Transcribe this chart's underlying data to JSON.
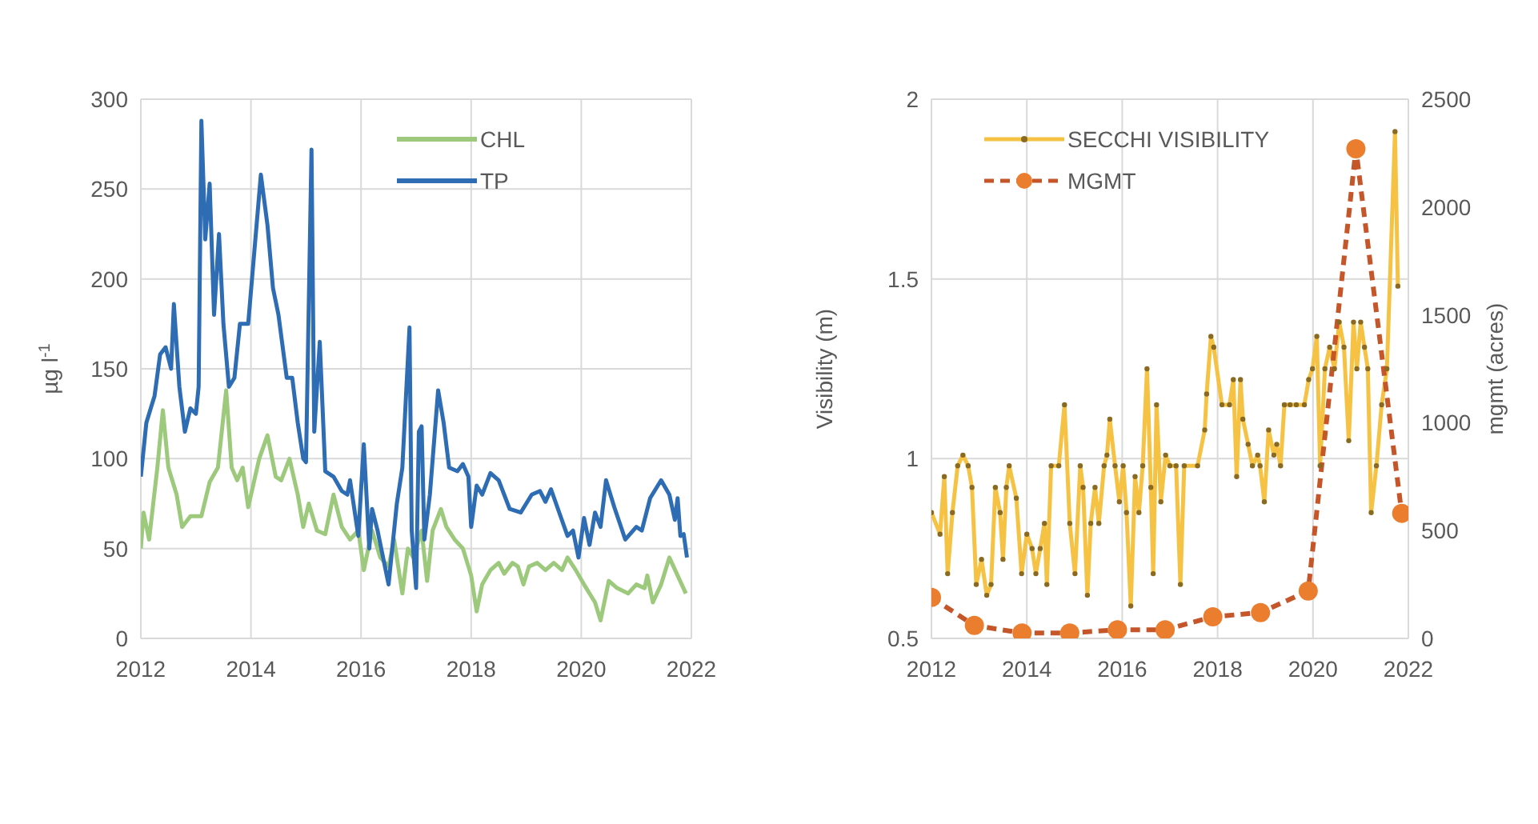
{
  "chart_data": [
    {
      "type": "line",
      "ylabel": "µg l$^{-1}$",
      "xlim": [
        2012,
        2022
      ],
      "xticks": [
        2012,
        2014,
        2016,
        2018,
        2020,
        2022
      ],
      "ylim": [
        0,
        300
      ],
      "yticks": [
        0,
        50,
        100,
        150,
        200,
        250,
        300
      ],
      "grid": true,
      "legend": "top right",
      "series": [
        {
          "name": "CHL",
          "color": "#9cc97c",
          "x": [
            2012.0,
            2012.05,
            2012.15,
            2012.3,
            2012.4,
            2012.5,
            2012.65,
            2012.75,
            2012.9,
            2013.1,
            2013.25,
            2013.4,
            2013.55,
            2013.65,
            2013.75,
            2013.85,
            2013.95,
            2014.15,
            2014.3,
            2014.45,
            2014.55,
            2014.7,
            2014.85,
            2014.95,
            2015.05,
            2015.2,
            2015.35,
            2015.5,
            2015.65,
            2015.8,
            2015.95,
            2016.05,
            2016.2,
            2016.35,
            2016.5,
            2016.6,
            2016.75,
            2016.85,
            2016.95,
            2017.1,
            2017.2,
            2017.3,
            2017.45,
            2017.55,
            2017.7,
            2017.85,
            2017.95,
            2018.0,
            2018.1,
            2018.2,
            2018.35,
            2018.5,
            2018.6,
            2018.75,
            2018.85,
            2018.95,
            2019.05,
            2019.2,
            2019.35,
            2019.5,
            2019.65,
            2019.75,
            2019.9,
            2020.05,
            2020.25,
            2020.35,
            2020.5,
            2020.65,
            2020.85,
            2021.0,
            2021.15,
            2021.2,
            2021.3,
            2021.45,
            2021.6,
            2021.75,
            2021.9
          ],
          "values": [
            50,
            70,
            55,
            95,
            127,
            95,
            80,
            62,
            68,
            68,
            87,
            95,
            138,
            95,
            88,
            95,
            73,
            100,
            113,
            90,
            88,
            100,
            80,
            62,
            75,
            60,
            58,
            80,
            62,
            55,
            60,
            38,
            60,
            45,
            40,
            55,
            25,
            50,
            45,
            60,
            32,
            60,
            72,
            62,
            55,
            50,
            40,
            35,
            15,
            30,
            38,
            42,
            36,
            42,
            40,
            30,
            40,
            42,
            38,
            42,
            38,
            45,
            38,
            30,
            20,
            10,
            32,
            28,
            25,
            30,
            28,
            35,
            20,
            30,
            45,
            35,
            25
          ]
        },
        {
          "name": "TP",
          "color": "#2e6db4",
          "x": [
            2012.0,
            2012.1,
            2012.25,
            2012.35,
            2012.45,
            2012.55,
            2012.6,
            2012.7,
            2012.8,
            2012.9,
            2013.0,
            2013.05,
            2013.1,
            2013.17,
            2013.25,
            2013.33,
            2013.42,
            2013.5,
            2013.6,
            2013.7,
            2013.8,
            2013.95,
            2014.18,
            2014.3,
            2014.4,
            2014.5,
            2014.65,
            2014.75,
            2014.85,
            2014.95,
            2015.0,
            2015.1,
            2015.15,
            2015.25,
            2015.35,
            2015.5,
            2015.65,
            2015.75,
            2015.8,
            2015.95,
            2016.05,
            2016.15,
            2016.2,
            2016.3,
            2016.5,
            2016.65,
            2016.75,
            2016.88,
            2016.92,
            2017.0,
            2017.05,
            2017.1,
            2017.15,
            2017.25,
            2017.4,
            2017.5,
            2017.6,
            2017.75,
            2017.85,
            2017.95,
            2018.0,
            2018.1,
            2018.2,
            2018.35,
            2018.5,
            2018.7,
            2018.9,
            2019.1,
            2019.25,
            2019.35,
            2019.45,
            2019.6,
            2019.75,
            2019.85,
            2019.95,
            2020.05,
            2020.15,
            2020.25,
            2020.35,
            2020.45,
            2020.6,
            2020.8,
            2021.0,
            2021.1,
            2021.25,
            2021.45,
            2021.6,
            2021.7,
            2021.75,
            2021.8,
            2021.86,
            2021.92
          ],
          "values": [
            90,
            120,
            135,
            158,
            162,
            150,
            186,
            140,
            115,
            128,
            125,
            140,
            288,
            222,
            253,
            180,
            225,
            175,
            140,
            145,
            175,
            175,
            258,
            230,
            195,
            180,
            145,
            145,
            120,
            100,
            98,
            272,
            115,
            165,
            93,
            90,
            82,
            80,
            88,
            57,
            108,
            50,
            72,
            60,
            30,
            75,
            95,
            173,
            60,
            28,
            115,
            118,
            55,
            80,
            138,
            120,
            95,
            93,
            97,
            90,
            62,
            85,
            80,
            92,
            88,
            72,
            70,
            80,
            82,
            76,
            83,
            70,
            57,
            60,
            45,
            67,
            52,
            70,
            62,
            88,
            73,
            55,
            62,
            60,
            78,
            88,
            80,
            66,
            78,
            57,
            58,
            45
          ]
        }
      ]
    },
    {
      "type": "line",
      "ylabel": "Visibility (m)",
      "y2label": "mgmt (acres)",
      "xlim": [
        2012,
        2022
      ],
      "xticks": [
        2012,
        2014,
        2016,
        2018,
        2020,
        2022
      ],
      "ylim": [
        0.5,
        2
      ],
      "yticks": [
        0.5,
        1,
        1.5,
        2
      ],
      "y2lim": [
        0,
        2500
      ],
      "y2ticks": [
        0,
        500,
        1000,
        1500,
        2000,
        2500
      ],
      "grid": true,
      "legend": "top left",
      "series": [
        {
          "name": "SECCHI VISIBILITY",
          "color": "#f5c244",
          "marker": "circle",
          "line_style": "solid",
          "x": [
            2012.0,
            2012.18,
            2012.27,
            2012.34,
            2012.44,
            2012.55,
            2012.66,
            2012.77,
            2012.85,
            2012.94,
            2013.05,
            2013.16,
            2013.25,
            2013.34,
            2013.44,
            2013.5,
            2013.57,
            2013.63,
            2013.78,
            2013.89,
            2014.0,
            2014.11,
            2014.19,
            2014.28,
            2014.37,
            2014.42,
            2014.51,
            2014.67,
            2014.79,
            2014.9,
            2015.01,
            2015.12,
            2015.18,
            2015.27,
            2015.34,
            2015.43,
            2015.51,
            2015.62,
            2015.68,
            2015.74,
            2015.85,
            2015.94,
            2016.02,
            2016.09,
            2016.18,
            2016.27,
            2016.35,
            2016.43,
            2016.52,
            2016.6,
            2016.65,
            2016.72,
            2016.81,
            2016.91,
            2017.0,
            2017.13,
            2017.22,
            2017.3,
            2017.58,
            2017.73,
            2017.77,
            2017.86,
            2017.92,
            2018.09,
            2018.25,
            2018.33,
            2018.4,
            2018.48,
            2018.53,
            2018.64,
            2018.73,
            2018.84,
            2018.89,
            2018.98,
            2019.07,
            2019.18,
            2019.24,
            2019.32,
            2019.4,
            2019.52,
            2019.65,
            2019.82,
            2019.91,
            2019.99,
            2020.08,
            2020.15,
            2020.25,
            2020.35,
            2020.45,
            2020.55,
            2020.65,
            2020.75,
            2020.85,
            2020.92,
            2021.0,
            2021.08,
            2021.15,
            2021.22,
            2021.33,
            2021.44,
            2021.55,
            2021.72,
            2021.78
          ],
          "values": [
            0.85,
            0.79,
            0.95,
            0.68,
            0.85,
            0.98,
            1.01,
            0.98,
            0.92,
            0.65,
            0.72,
            0.62,
            0.65,
            0.92,
            0.85,
            0.72,
            0.92,
            0.98,
            0.89,
            0.68,
            0.79,
            0.75,
            0.68,
            0.75,
            0.82,
            0.65,
            0.98,
            0.98,
            1.15,
            0.82,
            0.68,
            0.98,
            0.92,
            0.62,
            0.82,
            0.92,
            0.82,
            0.98,
            1.01,
            1.11,
            0.98,
            0.88,
            0.98,
            0.85,
            0.59,
            0.95,
            0.85,
            0.98,
            1.25,
            0.92,
            0.68,
            1.15,
            0.88,
            1.01,
            0.98,
            0.98,
            0.65,
            0.98,
            0.98,
            1.08,
            1.18,
            1.34,
            1.31,
            1.15,
            1.15,
            1.22,
            0.95,
            1.22,
            1.11,
            1.04,
            0.98,
            1.01,
            0.98,
            0.88,
            1.08,
            1.01,
            1.04,
            0.98,
            1.15,
            1.15,
            1.15,
            1.15,
            1.22,
            1.25,
            1.34,
            0.98,
            1.25,
            1.31,
            1.25,
            1.38,
            1.31,
            1.05,
            1.38,
            1.25,
            1.38,
            1.31,
            1.25,
            0.85,
            0.98,
            1.15,
            1.25,
            1.91,
            1.48
          ]
        },
        {
          "name": "MGMT",
          "color": "#c4562a",
          "axis": "y2",
          "marker": "circle",
          "line_style": "dashed",
          "x": [
            2012.0,
            2012.9,
            2013.9,
            2014.9,
            2015.9,
            2016.9,
            2017.9,
            2018.9,
            2019.9,
            2020.9,
            2021.86
          ],
          "values": [
            190,
            60,
            25,
            25,
            40,
            40,
            100,
            120,
            220,
            2270,
            580
          ]
        }
      ]
    }
  ]
}
